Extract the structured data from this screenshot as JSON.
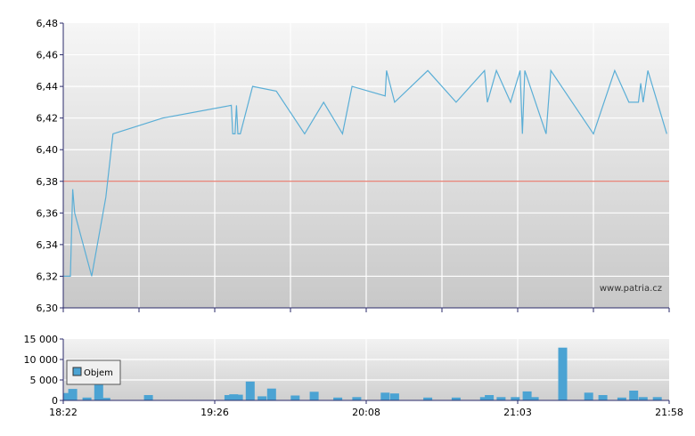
{
  "chart_data": [
    {
      "type": "line",
      "y_ticks": [
        "6,48",
        "6,46",
        "6,44",
        "6,42",
        "6,40",
        "6,38",
        "6,36",
        "6,34",
        "6,32",
        "6,30"
      ],
      "ylim": [
        6.3,
        6.48
      ],
      "grid": true,
      "reference_line": {
        "value": 6.38,
        "color": "#e06050"
      },
      "line_color": "#5aaed6",
      "watermark": "www.patria.cz",
      "series": [
        {
          "values": [
            [
              0.0,
              6.32
            ],
            [
              1.5,
              6.32
            ],
            [
              2.0,
              6.375
            ],
            [
              2.4,
              6.36
            ],
            [
              6.0,
              6.32
            ],
            [
              9.0,
              6.37
            ],
            [
              10.5,
              6.41
            ],
            [
              21.0,
              6.42
            ],
            [
              35.5,
              6.428
            ],
            [
              35.8,
              6.41
            ],
            [
              36.3,
              6.41
            ],
            [
              36.6,
              6.428
            ],
            [
              36.9,
              6.41
            ],
            [
              37.4,
              6.41
            ],
            [
              40.0,
              6.44
            ],
            [
              45.0,
              6.437
            ],
            [
              51.0,
              6.41
            ],
            [
              55.0,
              6.43
            ],
            [
              59.0,
              6.41
            ],
            [
              61.0,
              6.44
            ],
            [
              68.0,
              6.434
            ],
            [
              68.3,
              6.45
            ],
            [
              70.0,
              6.43
            ],
            [
              77.0,
              6.45
            ],
            [
              83.0,
              6.43
            ],
            [
              89.0,
              6.45
            ],
            [
              89.6,
              6.43
            ],
            [
              91.5,
              6.45
            ],
            [
              94.5,
              6.43
            ],
            [
              96.5,
              6.45
            ],
            [
              97.0,
              6.41
            ],
            [
              97.5,
              6.45
            ],
            [
              102.0,
              6.41
            ],
            [
              103.0,
              6.45
            ],
            [
              112.0,
              6.41
            ],
            [
              116.5,
              6.45
            ],
            [
              119.5,
              6.43
            ],
            [
              121.5,
              6.43
            ],
            [
              122.0,
              6.442
            ],
            [
              122.5,
              6.43
            ],
            [
              123.5,
              6.45
            ],
            [
              127.5,
              6.41
            ]
          ]
        }
      ]
    },
    {
      "type": "bar",
      "y_ticks": [
        "15 000",
        "10 000",
        "5 000",
        "0"
      ],
      "ylim": [
        0,
        15000
      ],
      "x_ticks": [
        "18:22",
        "19:26",
        "20:08",
        "21:03",
        "21:58"
      ],
      "legend": "Objem",
      "legend_placement": "top-left",
      "bar_color": "#4ba3d3",
      "series": [
        {
          "values": [
            [
              0.5,
              1800
            ],
            [
              2.0,
              2800
            ],
            [
              5.0,
              700
            ],
            [
              7.5,
              5400
            ],
            [
              9.0,
              600
            ],
            [
              18.0,
              1300
            ],
            [
              35.0,
              1300
            ],
            [
              36.0,
              1500
            ],
            [
              37.0,
              1400
            ],
            [
              39.5,
              4600
            ],
            [
              42.0,
              1000
            ],
            [
              44.0,
              2900
            ],
            [
              49.0,
              1200
            ],
            [
              53.0,
              2100
            ],
            [
              58.0,
              700
            ],
            [
              62.0,
              800
            ],
            [
              68.0,
              1900
            ],
            [
              70.0,
              1700
            ],
            [
              77.0,
              700
            ],
            [
              83.0,
              700
            ],
            [
              89.0,
              800
            ],
            [
              90.0,
              1300
            ],
            [
              92.5,
              800
            ],
            [
              95.5,
              800
            ],
            [
              98.0,
              2200
            ],
            [
              99.5,
              800
            ],
            [
              105.5,
              12900
            ],
            [
              111.0,
              1900
            ],
            [
              114.0,
              1300
            ],
            [
              118.0,
              700
            ],
            [
              120.5,
              2400
            ],
            [
              122.5,
              800
            ],
            [
              125.5,
              800
            ]
          ]
        }
      ]
    }
  ]
}
